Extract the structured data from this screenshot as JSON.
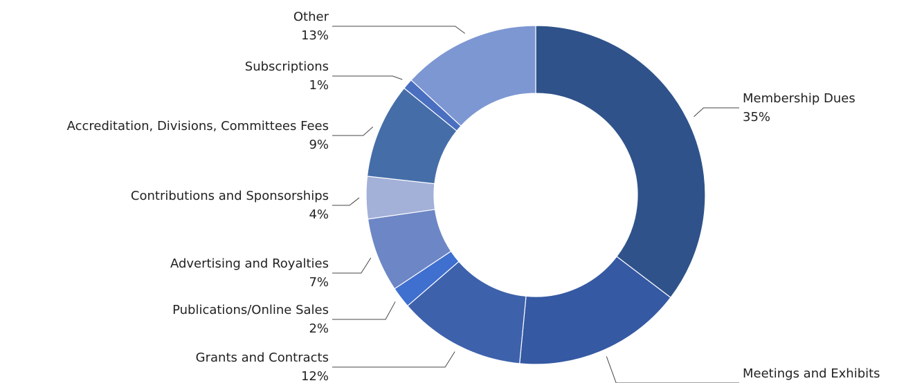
{
  "chart_data": {
    "type": "donut",
    "categories": [
      "Membership Dues",
      "Meetings and Exhibits",
      "Grants and Contracts",
      "Publications/Online Sales",
      "Advertising and Royalties",
      "Contributions and Sponsorships",
      "Accreditation, Divisions, Committees Fees",
      "Subscriptions",
      "Other"
    ],
    "values": [
      35,
      16,
      12,
      2,
      7,
      4,
      9,
      1,
      13
    ],
    "value_labels": [
      "35%",
      "16%",
      "12%",
      "2%",
      "7%",
      "4%",
      "9%",
      "1%",
      "13%"
    ],
    "colors": [
      "#2f528a",
      "#3559a3",
      "#3d62ab",
      "#3f6fcf",
      "#6d86c6",
      "#a3b1d8",
      "#456ea8",
      "#4a6fc0",
      "#7d97d3"
    ]
  }
}
